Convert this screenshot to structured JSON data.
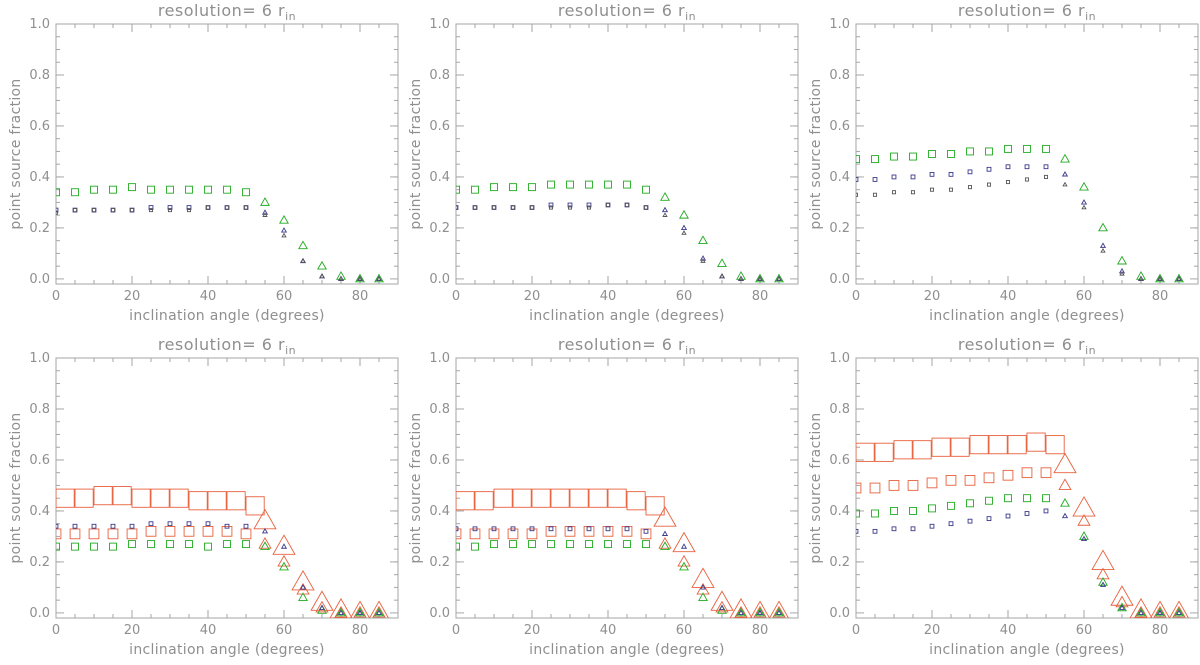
{
  "chart_data": [
    {
      "type": "scatter",
      "title": "resolution= 6 r",
      "title_subscript": "in",
      "xlabel": "inclination angle (degrees)",
      "ylabel": "point source fraction",
      "xlim": [
        0,
        90
      ],
      "ylim": [
        0,
        1.0
      ],
      "xticks": [
        0,
        20,
        40,
        60,
        80
      ],
      "yticks": [
        "0.0",
        "0.2",
        "0.4",
        "0.6",
        "0.8",
        "1.0"
      ],
      "x": [
        0,
        5,
        10,
        15,
        20,
        25,
        30,
        35,
        40,
        45,
        50,
        55,
        60,
        65,
        70,
        75,
        80,
        85
      ],
      "series": [
        {
          "color": "#22aa22",
          "marker_scale": 1.0,
          "values": [
            0.34,
            0.34,
            0.35,
            0.35,
            0.36,
            0.35,
            0.35,
            0.35,
            0.35,
            0.35,
            0.34,
            0.3,
            0.23,
            0.13,
            0.05,
            0.01,
            0.0,
            0.0
          ]
        },
        {
          "color": "#3a3a8c",
          "marker_scale": 0.55,
          "values": [
            0.27,
            0.27,
            0.27,
            0.27,
            0.27,
            0.28,
            0.28,
            0.28,
            0.28,
            0.28,
            0.28,
            0.26,
            0.19,
            0.07,
            0.01,
            0.0,
            0.0,
            0.0
          ]
        },
        {
          "color": "#555555",
          "marker_scale": 0.45,
          "values": [
            0.26,
            0.27,
            0.27,
            0.27,
            0.27,
            0.27,
            0.27,
            0.27,
            0.28,
            0.28,
            0.28,
            0.25,
            0.17,
            0.07,
            0.01,
            0.0,
            0.0,
            0.0
          ]
        }
      ]
    },
    {
      "type": "scatter",
      "title": "resolution= 6 r",
      "title_subscript": "in",
      "xlabel": "inclination angle (degrees)",
      "ylabel": "point source fraction",
      "xlim": [
        0,
        90
      ],
      "ylim": [
        0,
        1.0
      ],
      "xticks": [
        0,
        20,
        40,
        60,
        80
      ],
      "yticks": [
        "0.0",
        "0.2",
        "0.4",
        "0.6",
        "0.8",
        "1.0"
      ],
      "x": [
        0,
        5,
        10,
        15,
        20,
        25,
        30,
        35,
        40,
        45,
        50,
        55,
        60,
        65,
        70,
        75,
        80,
        85
      ],
      "series": [
        {
          "color": "#22aa22",
          "marker_scale": 1.0,
          "values": [
            0.35,
            0.35,
            0.36,
            0.36,
            0.36,
            0.37,
            0.37,
            0.37,
            0.37,
            0.37,
            0.35,
            0.32,
            0.25,
            0.15,
            0.06,
            0.01,
            0.0,
            0.0
          ]
        },
        {
          "color": "#3a3a8c",
          "marker_scale": 0.55,
          "values": [
            0.28,
            0.28,
            0.28,
            0.28,
            0.28,
            0.29,
            0.29,
            0.29,
            0.29,
            0.29,
            0.28,
            0.27,
            0.2,
            0.08,
            0.01,
            0.0,
            0.0,
            0.0
          ]
        },
        {
          "color": "#555555",
          "marker_scale": 0.45,
          "values": [
            0.28,
            0.28,
            0.28,
            0.28,
            0.28,
            0.28,
            0.28,
            0.28,
            0.29,
            0.29,
            0.28,
            0.25,
            0.18,
            0.07,
            0.01,
            0.0,
            0.0,
            0.0
          ]
        }
      ]
    },
    {
      "type": "scatter",
      "title": "resolution= 6 r",
      "title_subscript": "in",
      "xlabel": "inclination angle (degrees)",
      "ylabel": "point source fraction",
      "xlim": [
        0,
        90
      ],
      "ylim": [
        0,
        1.0
      ],
      "xticks": [
        0,
        20,
        40,
        60,
        80
      ],
      "yticks": [
        "0.0",
        "0.2",
        "0.4",
        "0.6",
        "0.8",
        "1.0"
      ],
      "x": [
        0,
        5,
        10,
        15,
        20,
        25,
        30,
        35,
        40,
        45,
        50,
        55,
        60,
        65,
        70,
        75,
        80,
        85
      ],
      "series": [
        {
          "color": "#22aa22",
          "marker_scale": 1.0,
          "values": [
            0.47,
            0.47,
            0.48,
            0.48,
            0.49,
            0.49,
            0.5,
            0.5,
            0.51,
            0.51,
            0.51,
            0.47,
            0.36,
            0.2,
            0.07,
            0.01,
            0.0,
            0.0
          ]
        },
        {
          "color": "#3a3a8c",
          "marker_scale": 0.55,
          "values": [
            0.39,
            0.39,
            0.4,
            0.4,
            0.41,
            0.41,
            0.42,
            0.43,
            0.44,
            0.44,
            0.44,
            0.41,
            0.3,
            0.13,
            0.03,
            0.0,
            0.0,
            0.0
          ]
        },
        {
          "color": "#555555",
          "marker_scale": 0.45,
          "values": [
            0.33,
            0.33,
            0.34,
            0.34,
            0.35,
            0.35,
            0.36,
            0.37,
            0.38,
            0.39,
            0.4,
            0.37,
            0.28,
            0.11,
            0.02,
            0.0,
            0.0,
            0.0
          ]
        }
      ]
    },
    {
      "type": "scatter",
      "title": "resolution= 6 r",
      "title_subscript": "in",
      "xlabel": "inclination angle (degrees)",
      "ylabel": "point source fraction",
      "xlim": [
        0,
        90
      ],
      "ylim": [
        0,
        1.0
      ],
      "xticks": [
        0,
        20,
        40,
        60,
        80
      ],
      "yticks": [
        "0.0",
        "0.2",
        "0.4",
        "0.6",
        "0.8",
        "1.0"
      ],
      "x": [
        0,
        5,
        10,
        15,
        20,
        25,
        30,
        35,
        40,
        45,
        50,
        55,
        60,
        65,
        70,
        75,
        80,
        85
      ],
      "series": [
        {
          "color": "#e8603c",
          "marker_scale": 2.6,
          "values": [
            0.45,
            0.45,
            0.46,
            0.46,
            0.45,
            0.45,
            0.45,
            0.44,
            0.44,
            0.44,
            0.42,
            0.36,
            0.26,
            0.12,
            0.04,
            0.01,
            0.0,
            0.0
          ]
        },
        {
          "color": "#e8603c",
          "marker_scale": 1.4,
          "values": [
            0.31,
            0.31,
            0.31,
            0.31,
            0.31,
            0.32,
            0.32,
            0.32,
            0.32,
            0.32,
            0.31,
            0.27,
            0.2,
            0.09,
            0.02,
            0.0,
            0.0,
            0.0
          ]
        },
        {
          "color": "#22aa22",
          "marker_scale": 1.0,
          "values": [
            0.26,
            0.26,
            0.26,
            0.26,
            0.27,
            0.27,
            0.27,
            0.27,
            0.26,
            0.27,
            0.27,
            0.26,
            0.18,
            0.06,
            0.01,
            0.0,
            0.0,
            0.0
          ]
        },
        {
          "color": "#3a3a8c",
          "marker_scale": 0.55,
          "values": [
            0.34,
            0.34,
            0.34,
            0.34,
            0.34,
            0.35,
            0.35,
            0.35,
            0.35,
            0.34,
            0.34,
            0.32,
            0.26,
            0.1,
            0.02,
            0.0,
            0.0,
            0.0
          ]
        }
      ]
    },
    {
      "type": "scatter",
      "title": "resolution= 6 r",
      "title_subscript": "in",
      "xlabel": "inclination angle (degrees)",
      "ylabel": "point source fraction",
      "xlim": [
        0,
        90
      ],
      "ylim": [
        0,
        1.0
      ],
      "xticks": [
        0,
        20,
        40,
        60,
        80
      ],
      "yticks": [
        "0.0",
        "0.2",
        "0.4",
        "0.6",
        "0.8",
        "1.0"
      ],
      "x": [
        0,
        5,
        10,
        15,
        20,
        25,
        30,
        35,
        40,
        45,
        50,
        55,
        60,
        65,
        70,
        75,
        80,
        85
      ],
      "series": [
        {
          "color": "#e8603c",
          "marker_scale": 2.6,
          "values": [
            0.44,
            0.44,
            0.45,
            0.45,
            0.45,
            0.45,
            0.45,
            0.45,
            0.45,
            0.44,
            0.42,
            0.37,
            0.27,
            0.13,
            0.04,
            0.01,
            0.0,
            0.0
          ]
        },
        {
          "color": "#e8603c",
          "marker_scale": 1.4,
          "values": [
            0.31,
            0.31,
            0.31,
            0.31,
            0.31,
            0.32,
            0.32,
            0.32,
            0.32,
            0.32,
            0.31,
            0.27,
            0.2,
            0.09,
            0.02,
            0.0,
            0.0,
            0.0
          ]
        },
        {
          "color": "#22aa22",
          "marker_scale": 1.0,
          "values": [
            0.26,
            0.26,
            0.27,
            0.27,
            0.27,
            0.27,
            0.27,
            0.27,
            0.27,
            0.27,
            0.27,
            0.26,
            0.18,
            0.06,
            0.01,
            0.0,
            0.0,
            0.0
          ]
        },
        {
          "color": "#3a3a8c",
          "marker_scale": 0.55,
          "values": [
            0.33,
            0.33,
            0.33,
            0.33,
            0.33,
            0.33,
            0.33,
            0.33,
            0.33,
            0.33,
            0.32,
            0.31,
            0.26,
            0.1,
            0.02,
            0.0,
            0.0,
            0.0
          ]
        }
      ]
    },
    {
      "type": "scatter",
      "title": "resolution= 6 r",
      "title_subscript": "in",
      "xlabel": "inclination angle (degrees)",
      "ylabel": "point source fraction",
      "xlim": [
        0,
        90
      ],
      "ylim": [
        0,
        1.0
      ],
      "xticks": [
        0,
        20,
        40,
        60,
        80
      ],
      "yticks": [
        "0.0",
        "0.2",
        "0.4",
        "0.6",
        "0.8",
        "1.0"
      ],
      "x": [
        0,
        5,
        10,
        15,
        20,
        25,
        30,
        35,
        40,
        45,
        50,
        55,
        60,
        65,
        70,
        75,
        80,
        85
      ],
      "series": [
        {
          "color": "#e8603c",
          "marker_scale": 2.6,
          "values": [
            0.63,
            0.63,
            0.64,
            0.64,
            0.65,
            0.65,
            0.66,
            0.66,
            0.66,
            0.67,
            0.66,
            0.58,
            0.41,
            0.2,
            0.06,
            0.01,
            0.0,
            0.0
          ]
        },
        {
          "color": "#e8603c",
          "marker_scale": 1.4,
          "values": [
            0.49,
            0.49,
            0.5,
            0.5,
            0.51,
            0.52,
            0.52,
            0.53,
            0.54,
            0.55,
            0.55,
            0.5,
            0.36,
            0.15,
            0.04,
            0.0,
            0.0,
            0.0
          ]
        },
        {
          "color": "#22aa22",
          "marker_scale": 1.0,
          "values": [
            0.39,
            0.39,
            0.4,
            0.4,
            0.41,
            0.42,
            0.43,
            0.44,
            0.45,
            0.45,
            0.45,
            0.43,
            0.3,
            0.12,
            0.02,
            0.0,
            0.0,
            0.0
          ]
        },
        {
          "color": "#3a3a8c",
          "marker_scale": 0.55,
          "values": [
            0.32,
            0.32,
            0.33,
            0.33,
            0.34,
            0.35,
            0.36,
            0.37,
            0.38,
            0.39,
            0.4,
            0.38,
            0.29,
            0.11,
            0.02,
            0.0,
            0.0,
            0.0
          ]
        }
      ]
    }
  ]
}
